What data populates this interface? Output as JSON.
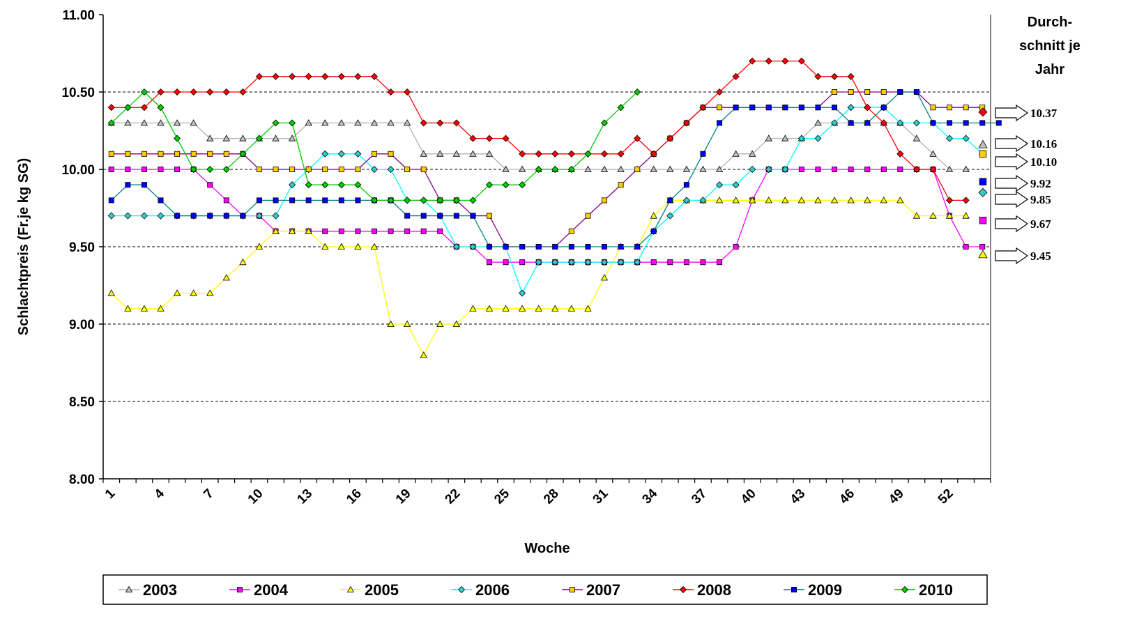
{
  "chart_data": {
    "type": "line",
    "xlabel": "Woche",
    "ylabel": "Schlachtpreis (Fr.je kg SG)",
    "ylim": [
      8.0,
      11.0
    ],
    "yticks": [
      "8.00",
      "8.50",
      "9.00",
      "9.50",
      "10.00",
      "10.50",
      "11.00"
    ],
    "xlim": [
      1,
      54
    ],
    "xticks": [
      "1",
      "4",
      "7",
      "10",
      "13",
      "16",
      "19",
      "22",
      "25",
      "28",
      "31",
      "34",
      "37",
      "40",
      "43",
      "46",
      "49",
      "52"
    ],
    "grid": "horizontal dashed at 8.50, 9.00, 9.50, 10.00, 10.50",
    "legend_position": "bottom",
    "side_title": [
      "Durch-",
      "schnitt je",
      "Jahr"
    ],
    "series": [
      {
        "name": "2003",
        "color": "#b0b0b0",
        "fill": "#c0c0c0",
        "marker": "triangle",
        "values": [
          10.3,
          10.3,
          10.3,
          10.3,
          10.3,
          10.3,
          10.2,
          10.2,
          10.2,
          10.2,
          10.2,
          10.2,
          10.3,
          10.3,
          10.3,
          10.3,
          10.3,
          10.3,
          10.3,
          10.1,
          10.1,
          10.1,
          10.1,
          10.1,
          10.0,
          10.0,
          10.0,
          10.0,
          10.0,
          10.0,
          10.0,
          10.0,
          10.0,
          10.0,
          10.0,
          10.0,
          10.0,
          10.0,
          10.1,
          10.1,
          10.2,
          10.2,
          10.2,
          10.3,
          10.3,
          10.3,
          10.3,
          10.3,
          10.3,
          10.2,
          10.1,
          10.0,
          10.0
        ],
        "average": 10.16,
        "average_label": "10.16"
      },
      {
        "name": "2004",
        "color": "#ff00ff",
        "fill": "#ff00ff",
        "marker": "square",
        "values": [
          10.0,
          10.0,
          10.0,
          10.0,
          10.0,
          10.0,
          9.9,
          9.8,
          9.7,
          9.7,
          9.6,
          9.6,
          9.6,
          9.6,
          9.6,
          9.6,
          9.6,
          9.6,
          9.6,
          9.6,
          9.6,
          9.5,
          9.5,
          9.4,
          9.4,
          9.4,
          9.4,
          9.4,
          9.4,
          9.4,
          9.4,
          9.4,
          9.4,
          9.4,
          9.4,
          9.4,
          9.4,
          9.4,
          9.5,
          9.8,
          10.0,
          10.0,
          10.0,
          10.0,
          10.0,
          10.0,
          10.0,
          10.0,
          10.0,
          10.0,
          10.0,
          9.7,
          9.5,
          9.5
        ],
        "average": 9.67,
        "average_label": "9.67"
      },
      {
        "name": "2005",
        "color": "#ffff00",
        "fill": "#ffff00",
        "marker": "triangle",
        "values": [
          9.2,
          9.1,
          9.1,
          9.1,
          9.2,
          9.2,
          9.2,
          9.3,
          9.4,
          9.5,
          9.6,
          9.6,
          9.6,
          9.5,
          9.5,
          9.5,
          9.5,
          9.0,
          9.0,
          8.8,
          9.0,
          9.0,
          9.1,
          9.1,
          9.1,
          9.1,
          9.1,
          9.1,
          9.1,
          9.1,
          9.3,
          9.5,
          9.5,
          9.7,
          9.8,
          9.8,
          9.8,
          9.8,
          9.8,
          9.8,
          9.8,
          9.8,
          9.8,
          9.8,
          9.8,
          9.8,
          9.8,
          9.8,
          9.8,
          9.7,
          9.7,
          9.7,
          9.7
        ],
        "average": 9.45,
        "average_label": "9.45"
      },
      {
        "name": "2006",
        "color": "#00ffff",
        "fill": "#33cccc",
        "marker": "diamond",
        "values": [
          9.7,
          9.7,
          9.7,
          9.7,
          9.7,
          9.7,
          9.7,
          9.7,
          9.7,
          9.7,
          9.7,
          9.9,
          10.0,
          10.1,
          10.1,
          10.1,
          10.0,
          10.0,
          9.8,
          9.8,
          9.7,
          9.5,
          9.5,
          9.5,
          9.5,
          9.2,
          9.4,
          9.4,
          9.4,
          9.4,
          9.4,
          9.4,
          9.4,
          9.6,
          9.7,
          9.8,
          9.8,
          9.9,
          9.9,
          10.0,
          10.0,
          10.0,
          10.2,
          10.2,
          10.3,
          10.4,
          10.4,
          10.4,
          10.3,
          10.3,
          10.3,
          10.2,
          10.2,
          10.1
        ],
        "average": 9.85,
        "average_label": "9.85"
      },
      {
        "name": "2007",
        "color": "#800080",
        "fill": "#ffcc00",
        "marker": "square",
        "values": [
          10.1,
          10.1,
          10.1,
          10.1,
          10.1,
          10.1,
          10.1,
          10.1,
          10.1,
          10.0,
          10.0,
          10.0,
          10.0,
          10.0,
          10.0,
          10.0,
          10.1,
          10.1,
          10.0,
          10.0,
          9.8,
          9.8,
          9.7,
          9.7,
          9.5,
          9.5,
          9.5,
          9.5,
          9.6,
          9.7,
          9.8,
          9.9,
          10.0,
          10.1,
          10.2,
          10.3,
          10.4,
          10.4,
          10.4,
          10.4,
          10.4,
          10.4,
          10.4,
          10.4,
          10.5,
          10.5,
          10.5,
          10.5,
          10.5,
          10.5,
          10.4,
          10.4,
          10.4,
          10.4
        ],
        "average": 10.1,
        "average_label": "10.10"
      },
      {
        "name": "2008",
        "color": "#ff0000",
        "fill": "#ff0000",
        "marker": "diamond",
        "values": [
          10.4,
          10.4,
          10.4,
          10.5,
          10.5,
          10.5,
          10.5,
          10.5,
          10.5,
          10.6,
          10.6,
          10.6,
          10.6,
          10.6,
          10.6,
          10.6,
          10.6,
          10.5,
          10.5,
          10.3,
          10.3,
          10.3,
          10.2,
          10.2,
          10.2,
          10.1,
          10.1,
          10.1,
          10.1,
          10.1,
          10.1,
          10.1,
          10.2,
          10.1,
          10.2,
          10.3,
          10.4,
          10.5,
          10.6,
          10.7,
          10.7,
          10.7,
          10.7,
          10.6,
          10.6,
          10.6,
          10.4,
          10.3,
          10.1,
          10.0,
          10.0,
          9.8,
          9.8
        ],
        "average": 10.37,
        "average_label": "10.37"
      },
      {
        "name": "2009",
        "color": "#008080",
        "fill": "#0000ff",
        "marker": "square",
        "values": [
          9.8,
          9.9,
          9.9,
          9.8,
          9.7,
          9.7,
          9.7,
          9.7,
          9.7,
          9.8,
          9.8,
          9.8,
          9.8,
          9.8,
          9.8,
          9.8,
          9.8,
          9.8,
          9.7,
          9.7,
          9.7,
          9.7,
          9.7,
          9.5,
          9.5,
          9.5,
          9.5,
          9.5,
          9.5,
          9.5,
          9.5,
          9.5,
          9.5,
          9.6,
          9.8,
          9.9,
          10.1,
          10.3,
          10.4,
          10.4,
          10.4,
          10.4,
          10.4,
          10.4,
          10.4,
          10.3,
          10.3,
          10.4,
          10.5,
          10.5,
          10.3,
          10.3,
          10.3,
          10.3,
          10.3
        ],
        "average": 9.92,
        "average_label": "9.92"
      },
      {
        "name": "2010",
        "color": "#00cc00",
        "fill": "#00cc00",
        "marker": "diamond",
        "values": [
          10.3,
          10.4,
          10.5,
          10.4,
          10.2,
          10.0,
          10.0,
          10.0,
          10.1,
          10.2,
          10.3,
          10.3,
          9.9,
          9.9,
          9.9,
          9.9,
          9.8,
          9.8,
          9.8,
          9.8,
          9.8,
          9.8,
          9.8,
          9.9,
          9.9,
          9.9,
          10.0,
          10.0,
          10.0,
          10.1,
          10.3,
          10.4,
          10.5
        ],
        "average": null,
        "average_label": null
      }
    ]
  }
}
